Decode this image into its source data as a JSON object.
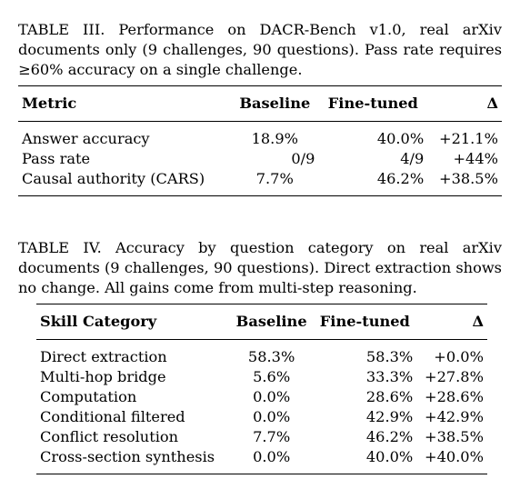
{
  "table3": {
    "label": "TABLE III.",
    "caption": "Performance on DACR-Bench v1.0, real arXiv documents only (9 challenges, 90 questions). Pass rate requires ≥60% accuracy on a single challenge.",
    "headers": [
      "Metric",
      "Baseline",
      "Fine-tuned",
      "Δ"
    ],
    "rows": [
      [
        "Answer accuracy",
        "18.9%",
        "40.0%",
        "+21.1%"
      ],
      [
        "Pass rate",
        "0/9",
        "4/9",
        "+44%"
      ],
      [
        "Causal authority (CARS)",
        "7.7%",
        "46.2%",
        "+38.5%"
      ]
    ]
  },
  "table4": {
    "label": "TABLE IV.",
    "caption": "Accuracy by question category on real arXiv documents (9 challenges, 90 questions). Direct extraction shows no change. All gains come from multi-step reasoning.",
    "headers": [
      "Skill Category",
      "Baseline",
      "Fine-tuned",
      "Δ"
    ],
    "rows": [
      [
        "Direct extraction",
        "58.3%",
        "58.3%",
        "+0.0%"
      ],
      [
        "Multi-hop bridge",
        "5.6%",
        "33.3%",
        "+27.8%"
      ],
      [
        "Computation",
        "0.0%",
        "28.6%",
        "+28.6%"
      ],
      [
        "Conditional filtered",
        "0.0%",
        "42.9%",
        "+42.9%"
      ],
      [
        "Conflict resolution",
        "7.7%",
        "46.2%",
        "+38.5%"
      ],
      [
        "Cross-section synthesis",
        "0.0%",
        "40.0%",
        "+40.0%"
      ]
    ]
  }
}
